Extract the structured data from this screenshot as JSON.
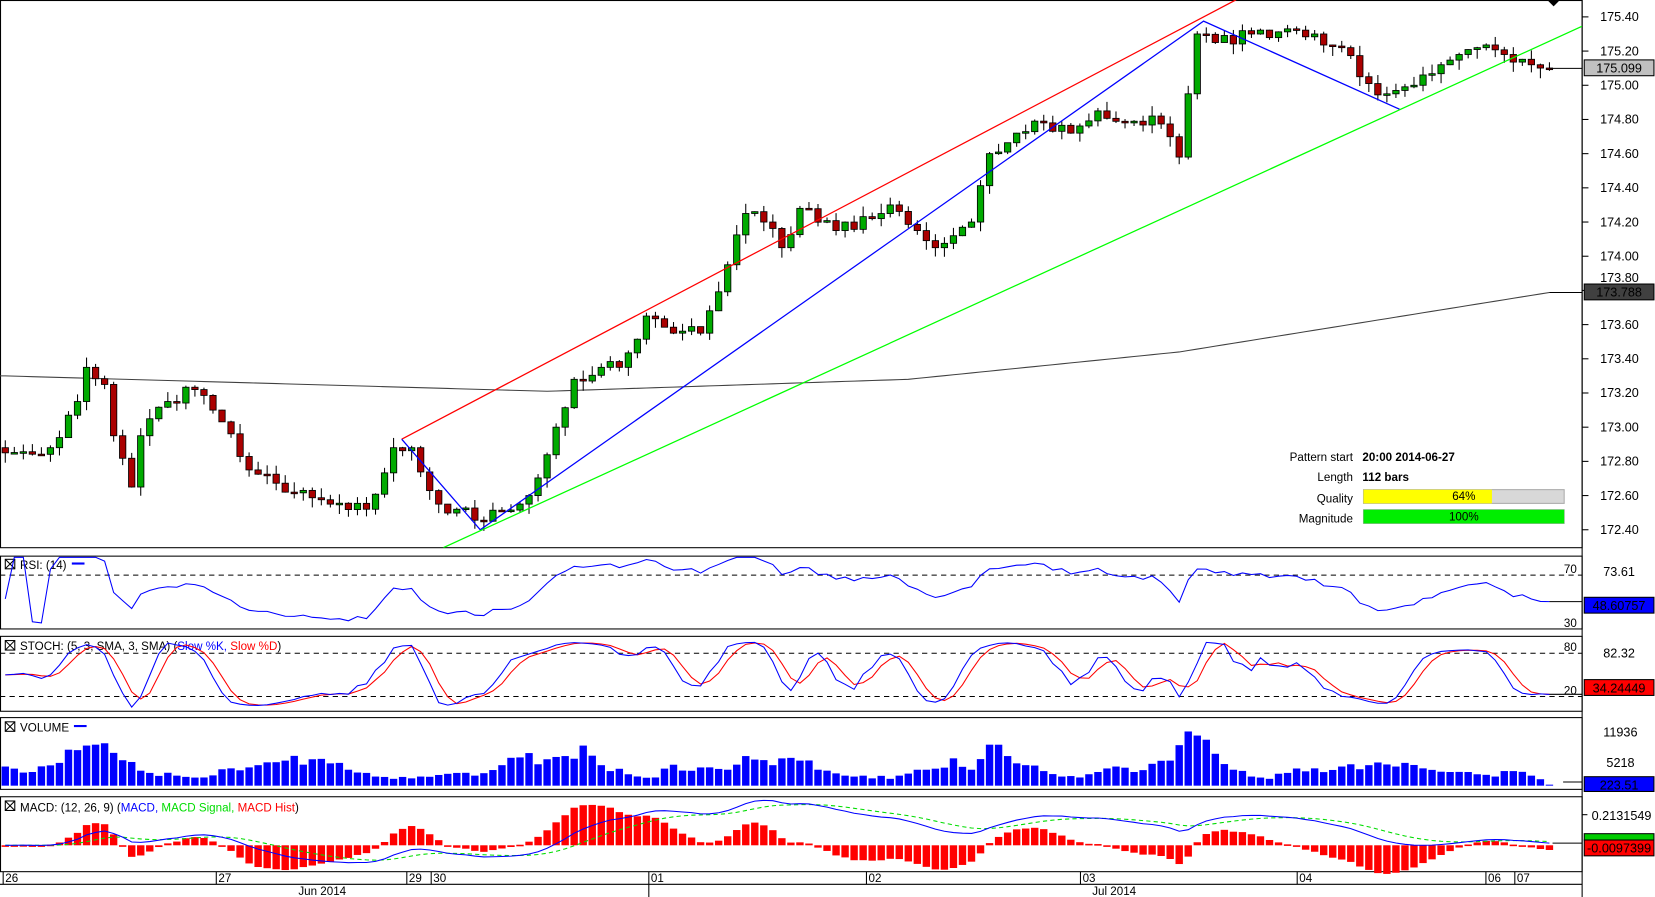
{
  "chart_data": {
    "type": "candlestick",
    "title": "",
    "price_ticks": [
      "175.40",
      "175.20",
      "175.00",
      "174.80",
      "174.60",
      "174.40",
      "174.20",
      "174.00",
      "173.80",
      "173.60",
      "173.40",
      "173.20",
      "173.00",
      "172.80",
      "172.60",
      "172.40"
    ],
    "price_range": [
      172.4,
      175.4
    ],
    "bars": 172,
    "current_price": "175.099",
    "ma_value": "173.788",
    "close_keypoints": [
      [
        0,
        172.85
      ],
      [
        5,
        172.88
      ],
      [
        8,
        173.15
      ],
      [
        9,
        173.35
      ],
      [
        11,
        173.25
      ],
      [
        12,
        172.95
      ],
      [
        14,
        172.65
      ],
      [
        15,
        172.95
      ],
      [
        18,
        173.15
      ],
      [
        21,
        173.22
      ],
      [
        23,
        173.1
      ],
      [
        27,
        172.75
      ],
      [
        31,
        172.62
      ],
      [
        36,
        172.55
      ],
      [
        40,
        172.52
      ],
      [
        43,
        172.88
      ],
      [
        45,
        172.88
      ],
      [
        48,
        172.55
      ],
      [
        53,
        172.45
      ],
      [
        58,
        172.6
      ],
      [
        61,
        173.0
      ],
      [
        63,
        173.28
      ],
      [
        66,
        173.35
      ],
      [
        68,
        173.35
      ],
      [
        71,
        173.65
      ],
      [
        74,
        173.55
      ],
      [
        77,
        173.55
      ],
      [
        80,
        173.95
      ],
      [
        82,
        174.25
      ],
      [
        84,
        174.2
      ],
      [
        86,
        174.05
      ],
      [
        88,
        174.28
      ],
      [
        92,
        174.15
      ],
      [
        96,
        174.22
      ],
      [
        98,
        174.3
      ],
      [
        101,
        174.15
      ],
      [
        103,
        174.05
      ],
      [
        105,
        174.12
      ],
      [
        107,
        174.2
      ],
      [
        109,
        174.6
      ],
      [
        112,
        174.72
      ],
      [
        115,
        174.78
      ],
      [
        118,
        174.72
      ],
      [
        121,
        174.85
      ],
      [
        124,
        174.78
      ],
      [
        127,
        174.82
      ],
      [
        130,
        174.58
      ],
      [
        131,
        174.95
      ],
      [
        132,
        175.3
      ],
      [
        134,
        175.25
      ],
      [
        138,
        175.3
      ],
      [
        142,
        175.33
      ],
      [
        145,
        175.3
      ],
      [
        148,
        175.22
      ],
      [
        150,
        175.05
      ],
      [
        153,
        174.95
      ],
      [
        156,
        175.0
      ],
      [
        159,
        175.12
      ],
      [
        161,
        175.18
      ],
      [
        163,
        175.22
      ],
      [
        166,
        175.18
      ],
      [
        169,
        175.12
      ],
      [
        171,
        175.099
      ]
    ],
    "ma_keypoints": [
      [
        0,
        173.3
      ],
      [
        60,
        173.21
      ],
      [
        100,
        173.28
      ],
      [
        130,
        173.44
      ],
      [
        171,
        173.788
      ]
    ],
    "pattern_lines": {
      "resistance": [
        [
          43.9,
          172.93
        ],
        [
          136.3,
          175.5
        ]
      ],
      "zigzag": [
        [
          43.9,
          172.93
        ],
        [
          52.6,
          172.4
        ],
        [
          132.7,
          175.375
        ],
        [
          154.4,
          174.86
        ]
      ],
      "support": [
        [
          48.5,
          172.295
        ],
        [
          174.6,
          175.345
        ]
      ]
    },
    "day_labels": [
      {
        "label": "26",
        "index": 0
      },
      {
        "label": "27",
        "index": 23.6
      },
      {
        "label": "29",
        "index": 44.7
      },
      {
        "label": "30",
        "index": 47.4
      },
      {
        "label": "01",
        "index": 71.5
      },
      {
        "label": "02",
        "index": 95.6
      },
      {
        "label": "03",
        "index": 119.3
      },
      {
        "label": "04",
        "index": 143.3
      },
      {
        "label": "06",
        "index": 164.2
      },
      {
        "label": "07",
        "index": 167.4
      }
    ],
    "month_labels": [
      {
        "label": "Jun 2014",
        "index": 35.1
      },
      {
        "label": "Jul 2014",
        "index": 122.8
      }
    ],
    "colors": {
      "up": "#00aa00",
      "down": "#aa0000",
      "resistance": "#ff0000",
      "zigzag": "#0000ff",
      "support": "#00ff00",
      "ma": "#404040"
    }
  },
  "pattern_info": {
    "start_label": "Pattern start",
    "start_value": "20:00 2014-06-27",
    "length_label": "Length",
    "length_value": "112 bars",
    "quality_label": "Quality",
    "quality_text": "64%",
    "quality": 0.64,
    "magnitude_label": "Magnitude",
    "magnitude_text": "100%",
    "magnitude": 1.0
  },
  "indicators": {
    "rsi": {
      "title": "RSI: (14)",
      "level_high": "70",
      "level_low": "30",
      "axis_label": "73.61",
      "value": "48.60757"
    },
    "stoch": {
      "title": "STOCH: (5, 3, SMA, 3, SMA) (",
      "k_label": "Slow %K,",
      "d_label": "Slow %D",
      "close": ")",
      "level_high": "80",
      "level_low": "20",
      "axis_label": "82.32",
      "value": "34.24449"
    },
    "volume": {
      "title": "VOLUME",
      "axis_high": "11936",
      "axis_mid": "5218",
      "value": "223.51",
      "keypoints": [
        [
          0,
          4200
        ],
        [
          3,
          3000
        ],
        [
          6,
          5000
        ],
        [
          8,
          7800
        ],
        [
          10,
          9000
        ],
        [
          12,
          7200
        ],
        [
          14,
          5200
        ],
        [
          16,
          2800
        ],
        [
          19,
          2200
        ],
        [
          22,
          1800
        ],
        [
          25,
          3800
        ],
        [
          28,
          4500
        ],
        [
          31,
          5500
        ],
        [
          34,
          5800
        ],
        [
          37,
          5000
        ],
        [
          40,
          2800
        ],
        [
          43,
          1500
        ],
        [
          46,
          2000
        ],
        [
          49,
          2600
        ],
        [
          52,
          2200
        ],
        [
          55,
          4500
        ],
        [
          57,
          6200
        ],
        [
          60,
          5800
        ],
        [
          62,
          6500
        ],
        [
          64,
          8800
        ],
        [
          66,
          4500
        ],
        [
          69,
          2500
        ],
        [
          72,
          1800
        ],
        [
          74,
          4600
        ],
        [
          77,
          4000
        ],
        [
          80,
          3500
        ],
        [
          82,
          6500
        ],
        [
          85,
          4500
        ],
        [
          88,
          5500
        ],
        [
          90,
          3500
        ],
        [
          93,
          2200
        ],
        [
          96,
          1600
        ],
        [
          99,
          2200
        ],
        [
          102,
          3500
        ],
        [
          105,
          6000
        ],
        [
          107,
          3500
        ],
        [
          109,
          9000
        ],
        [
          111,
          6500
        ],
        [
          113,
          4500
        ],
        [
          115,
          3200
        ],
        [
          117,
          2000
        ],
        [
          119,
          1800
        ],
        [
          121,
          3000
        ],
        [
          123,
          4200
        ],
        [
          125,
          3000
        ],
        [
          127,
          4800
        ],
        [
          129,
          5500
        ],
        [
          131,
          11900
        ],
        [
          132,
          11000
        ],
        [
          134,
          7000
        ],
        [
          136,
          3500
        ],
        [
          138,
          2000
        ],
        [
          140,
          1500
        ],
        [
          142,
          2800
        ],
        [
          145,
          3800
        ],
        [
          148,
          4200
        ],
        [
          151,
          4500
        ],
        [
          154,
          4200
        ],
        [
          157,
          3800
        ],
        [
          160,
          3000
        ],
        [
          163,
          2500
        ],
        [
          165,
          2000
        ],
        [
          167,
          3200
        ],
        [
          169,
          2200
        ],
        [
          171,
          223
        ]
      ]
    },
    "macd": {
      "title": "MACD: (12, 26, 9) (",
      "macd_label": "MACD,",
      "signal_label": "MACD Signal,",
      "hist_label": "MACD Hist",
      "close": ")",
      "axis_label": "0.2131549",
      "value": "-0.0097399"
    }
  }
}
